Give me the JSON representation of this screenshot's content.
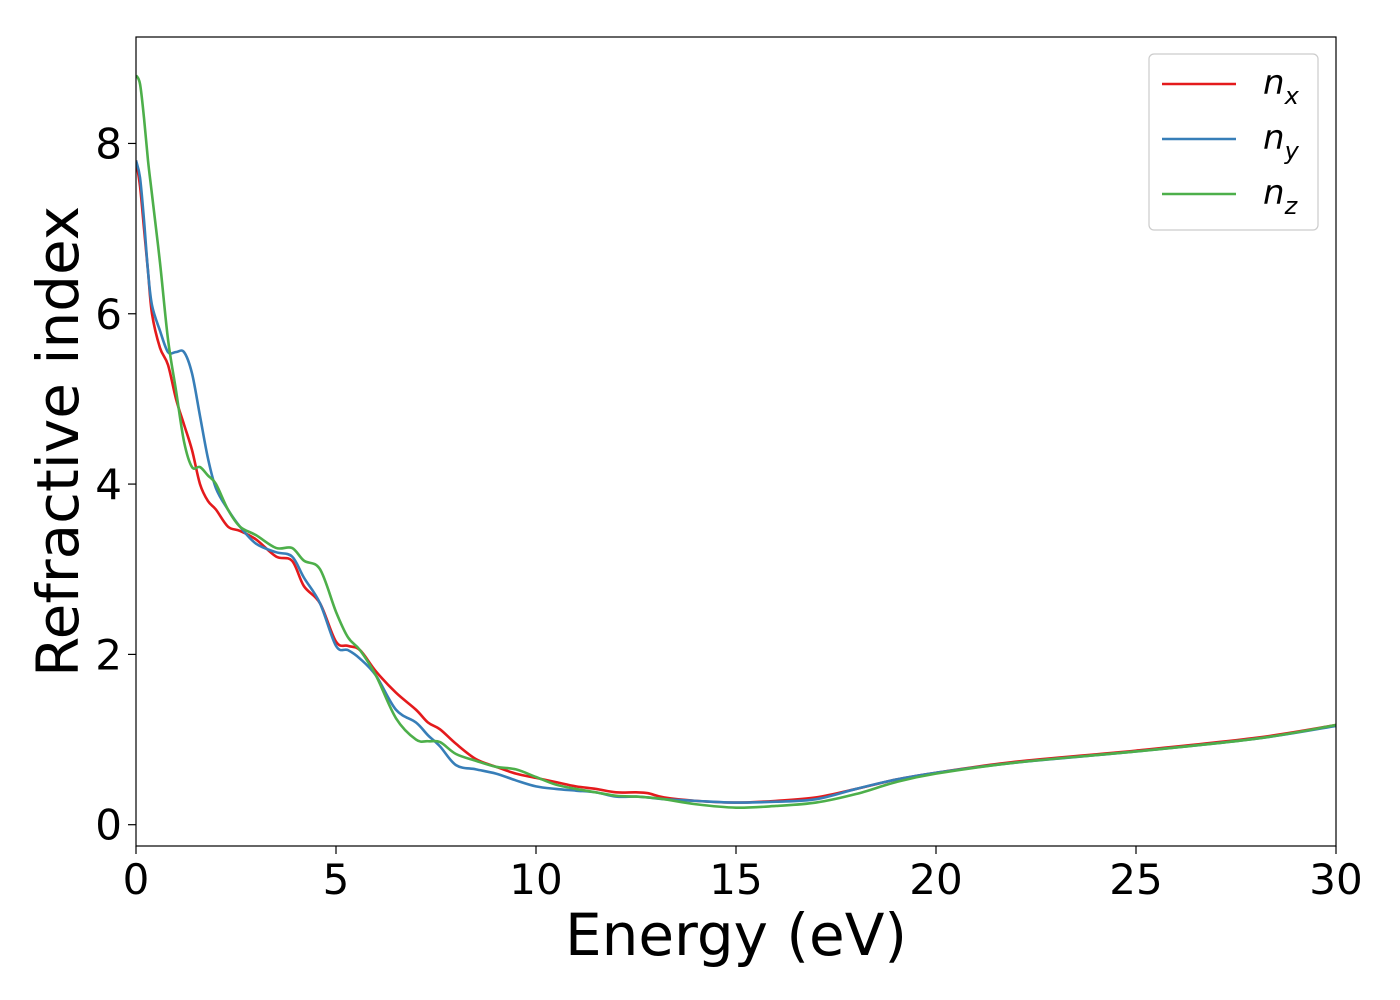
{
  "chart_data": {
    "type": "line",
    "xlabel": "Energy (eV)",
    "ylabel": "Refractive index",
    "xlim": [
      0,
      30
    ],
    "ylim": [
      -0.25,
      9.25
    ],
    "xticks": [
      0,
      5,
      10,
      15,
      20,
      25,
      30
    ],
    "yticks": [
      0,
      2,
      4,
      6,
      8
    ],
    "grid": false,
    "legend_position": "top-right",
    "series": [
      {
        "name": "n_x",
        "legend_base": "n",
        "legend_sub": "x",
        "color": "#e41a1c",
        "x": [
          0,
          0.1,
          0.2,
          0.3,
          0.4,
          0.6,
          0.8,
          1.0,
          1.2,
          1.4,
          1.6,
          1.8,
          2.0,
          2.3,
          2.6,
          3.0,
          3.5,
          3.9,
          4.2,
          4.6,
          5.0,
          5.3,
          5.6,
          6.0,
          6.5,
          7.0,
          7.3,
          7.6,
          8.0,
          8.5,
          9.0,
          9.5,
          10.0,
          10.5,
          11.0,
          11.5,
          12.0,
          12.5,
          12.8,
          13.2,
          14.0,
          15.0,
          16.0,
          17.0,
          18.0,
          19.0,
          20.0,
          22.0,
          25.0,
          28.0,
          30.0
        ],
        "y": [
          7.8,
          7.5,
          7.0,
          6.5,
          6.0,
          5.6,
          5.4,
          5.0,
          4.7,
          4.4,
          4.0,
          3.8,
          3.7,
          3.5,
          3.45,
          3.35,
          3.15,
          3.1,
          2.8,
          2.6,
          2.15,
          2.1,
          2.05,
          1.8,
          1.55,
          1.35,
          1.2,
          1.12,
          0.95,
          0.77,
          0.68,
          0.6,
          0.55,
          0.5,
          0.45,
          0.42,
          0.38,
          0.38,
          0.37,
          0.32,
          0.28,
          0.26,
          0.28,
          0.32,
          0.42,
          0.53,
          0.61,
          0.74,
          0.87,
          1.02,
          1.17
        ]
      },
      {
        "name": "n_y",
        "legend_base": "n",
        "legend_sub": "y",
        "color": "#377eb8",
        "x": [
          0,
          0.1,
          0.2,
          0.3,
          0.4,
          0.6,
          0.8,
          1.0,
          1.2,
          1.4,
          1.6,
          1.8,
          2.0,
          2.3,
          2.6,
          3.0,
          3.5,
          3.9,
          4.2,
          4.6,
          5.0,
          5.3,
          5.6,
          6.0,
          6.5,
          7.0,
          7.3,
          7.6,
          8.0,
          8.5,
          9.0,
          9.5,
          10.0,
          10.5,
          11.0,
          11.5,
          12.0,
          12.5,
          12.8,
          13.2,
          14.0,
          15.0,
          16.0,
          17.0,
          18.0,
          19.0,
          20.0,
          22.0,
          25.0,
          28.0,
          30.0
        ],
        "y": [
          7.8,
          7.6,
          7.1,
          6.5,
          6.1,
          5.8,
          5.55,
          5.55,
          5.55,
          5.3,
          4.8,
          4.3,
          3.95,
          3.7,
          3.5,
          3.3,
          3.2,
          3.15,
          2.9,
          2.6,
          2.1,
          2.05,
          1.95,
          1.75,
          1.35,
          1.2,
          1.05,
          0.92,
          0.7,
          0.65,
          0.6,
          0.52,
          0.45,
          0.42,
          0.4,
          0.38,
          0.33,
          0.33,
          0.32,
          0.3,
          0.28,
          0.26,
          0.27,
          0.3,
          0.42,
          0.53,
          0.61,
          0.73,
          0.86,
          1.01,
          1.16
        ]
      },
      {
        "name": "n_z",
        "legend_base": "n",
        "legend_sub": "z",
        "color": "#4daf4a",
        "x": [
          0,
          0.1,
          0.2,
          0.3,
          0.4,
          0.6,
          0.8,
          1.0,
          1.2,
          1.4,
          1.6,
          1.8,
          2.0,
          2.3,
          2.6,
          3.0,
          3.5,
          3.9,
          4.2,
          4.6,
          5.0,
          5.3,
          5.6,
          6.0,
          6.5,
          7.0,
          7.3,
          7.6,
          8.0,
          8.5,
          9.0,
          9.5,
          10.0,
          10.5,
          11.0,
          11.5,
          12.0,
          12.5,
          12.8,
          13.2,
          14.0,
          15.0,
          16.0,
          17.0,
          18.0,
          19.0,
          20.0,
          22.0,
          25.0,
          28.0,
          30.0
        ],
        "y": [
          8.8,
          8.7,
          8.3,
          7.8,
          7.4,
          6.6,
          5.7,
          5.1,
          4.5,
          4.2,
          4.2,
          4.1,
          4.0,
          3.7,
          3.5,
          3.4,
          3.25,
          3.25,
          3.1,
          3.0,
          2.5,
          2.2,
          2.05,
          1.75,
          1.25,
          1.0,
          0.98,
          0.97,
          0.83,
          0.75,
          0.68,
          0.65,
          0.56,
          0.47,
          0.42,
          0.38,
          0.34,
          0.33,
          0.32,
          0.3,
          0.24,
          0.2,
          0.22,
          0.26,
          0.36,
          0.5,
          0.6,
          0.73,
          0.86,
          1.01,
          1.17
        ]
      }
    ]
  }
}
